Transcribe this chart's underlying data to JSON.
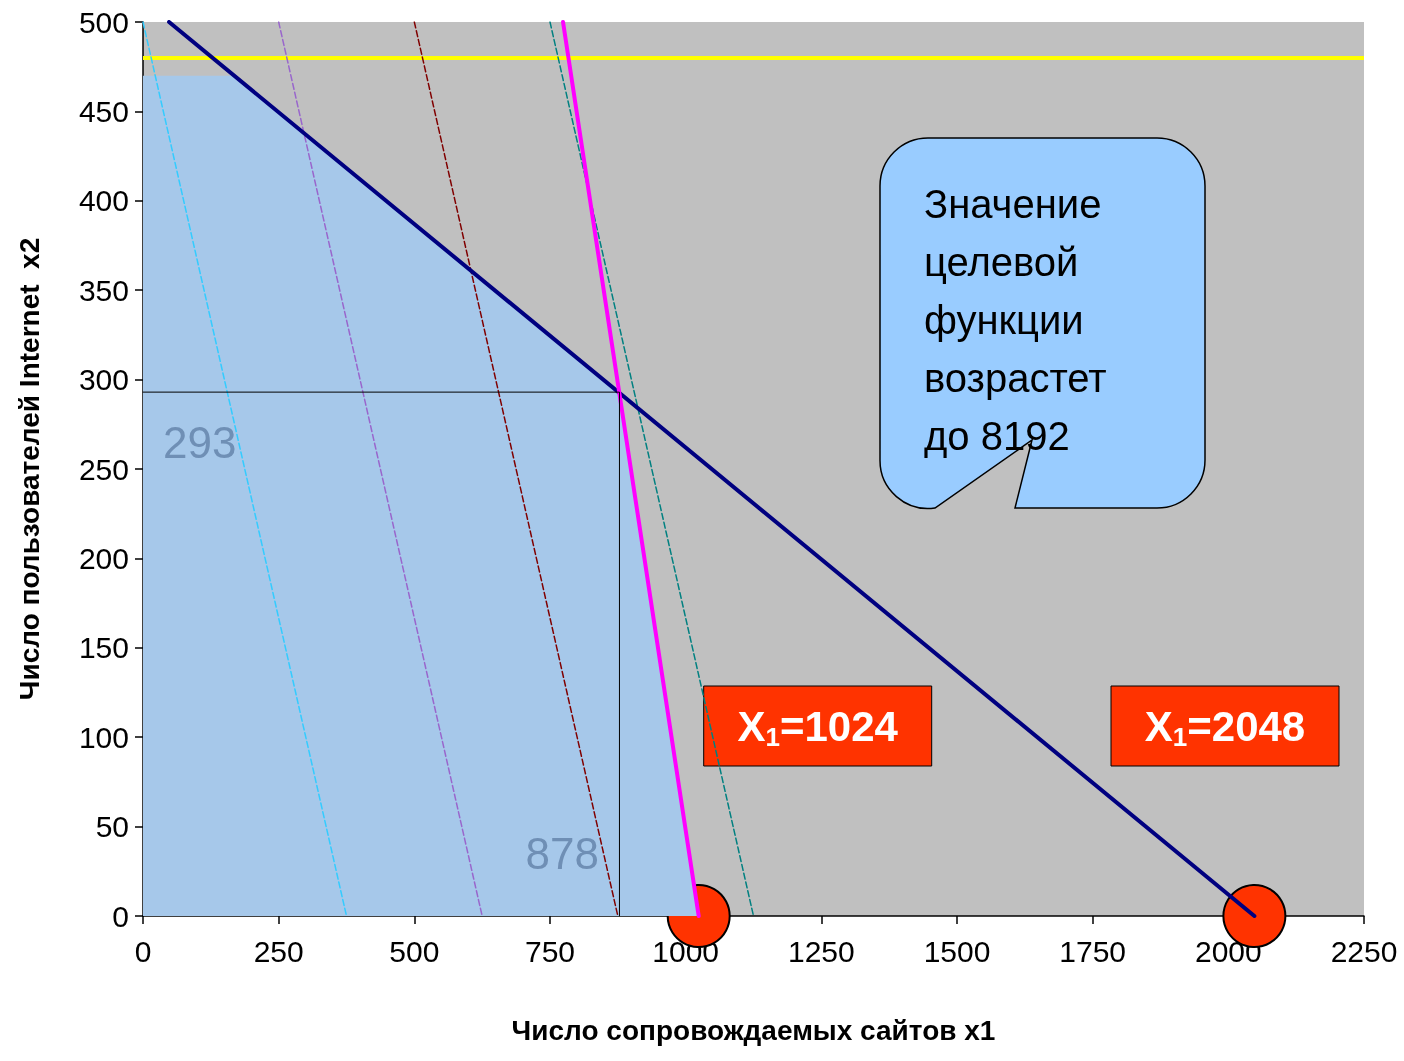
{
  "chart_data": {
    "type": "line",
    "xlabel": "Число сопровождаемых сайтов x1",
    "ylabel": "Число пользователей Internet  x2",
    "xlim": [
      0,
      2250
    ],
    "xticks": [
      0,
      250,
      500,
      750,
      1000,
      1250,
      1500,
      1750,
      2000,
      2250
    ],
    "ylim": [
      0,
      500
    ],
    "yticks": [
      0,
      50,
      100,
      150,
      200,
      250,
      300,
      350,
      400,
      450,
      500
    ],
    "grid": false,
    "marker": "none",
    "series": [
      {
        "type": "area",
        "color": "#a6c8ea",
        "x": [
          0,
          168,
          878,
          1024
        ],
        "values": [
          470,
          470,
          293,
          0
        ]
      },
      {
        "type": "line",
        "line_style": "dashed",
        "color": "#33ccff",
        "x": [
          0,
          375
        ],
        "values": [
          500,
          0
        ]
      },
      {
        "type": "line",
        "line_style": "dashed",
        "color": "#9966cc",
        "x": [
          250,
          625
        ],
        "values": [
          500,
          0
        ]
      },
      {
        "type": "line",
        "line_style": "dashed",
        "color": "#800000",
        "x": [
          500,
          875
        ],
        "values": [
          500,
          0
        ]
      },
      {
        "type": "line",
        "line_style": "dashed",
        "color": "#008080",
        "x": [
          750,
          1125
        ],
        "values": [
          500,
          0
        ]
      },
      {
        "type": "line",
        "line_style": "solid",
        "color": "#000080",
        "x": [
          48,
          2048
        ],
        "values": [
          500,
          0
        ]
      },
      {
        "type": "line",
        "line_style": "solid",
        "color": "#ff00ff",
        "x": [
          774,
          1024
        ],
        "values": [
          500,
          0
        ]
      },
      {
        "type": "line",
        "line_style": "solid",
        "color": "#000000",
        "x": [
          0,
          878,
          878
        ],
        "values": [
          293,
          293,
          0
        ]
      },
      {
        "type": "scatter",
        "marker": "circle",
        "color": "#ff3300",
        "x": [
          1024,
          2048
        ],
        "values": [
          0,
          0
        ]
      }
    ],
    "ref_lines": [
      {
        "axis": "y",
        "value": 480,
        "color": "#ffff00"
      }
    ],
    "annotations": [
      {
        "text": "293",
        "x": 0,
        "y": 293
      },
      {
        "text": "878",
        "x": 878,
        "y": 0
      },
      "X$_{1}$=1024",
      "X$_{1}$=2048",
      "Значение\nцелевой\nфункции\nвозрастет\nдо 8192"
    ]
  }
}
